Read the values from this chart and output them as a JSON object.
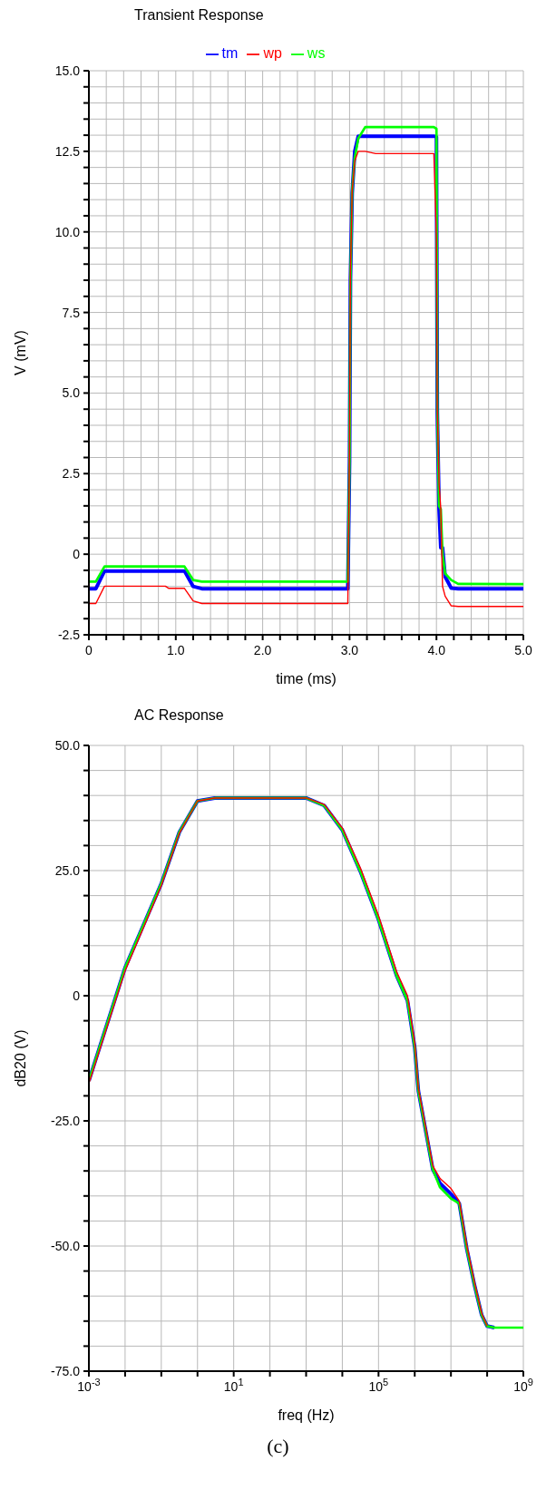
{
  "chart_data": [
    {
      "type": "line",
      "title": "Transient Response",
      "xlabel": "time (ms)",
      "ylabel": "V (mV)",
      "legend": "top",
      "grid": true,
      "x": [
        0,
        0.08,
        0.18,
        0.88,
        0.92,
        1.1,
        1.2,
        1.3,
        2.98,
        3.0,
        3.01,
        3.03,
        3.06,
        3.1,
        3.18,
        3.3,
        3.97,
        4.0,
        4.01,
        4.03,
        4.05,
        4.07,
        4.1,
        4.17,
        4.25,
        5.0
      ],
      "series": [
        {
          "name": "tm",
          "color": "#0000ff",
          "values": [
            -1.07,
            -1.07,
            -0.52,
            -0.52,
            -0.52,
            -0.52,
            -1.0,
            -1.07,
            -1.07,
            2.9,
            8.5,
            11.2,
            12.5,
            12.97,
            12.97,
            12.97,
            12.97,
            12.95,
            4.4,
            1.4,
            0.2,
            0.2,
            -0.7,
            -1.05,
            -1.07,
            -1.07
          ]
        },
        {
          "name": "ws",
          "color": "#00ff00",
          "values": [
            -0.85,
            -0.85,
            -0.38,
            -0.38,
            -0.38,
            -0.38,
            -0.8,
            -0.85,
            -0.85,
            3.0,
            8.5,
            11.3,
            12.3,
            12.9,
            13.25,
            13.25,
            13.25,
            13.2,
            4.5,
            1.5,
            1.4,
            0.0,
            -0.6,
            -0.8,
            -0.92,
            -0.93
          ]
        },
        {
          "name": "wp",
          "color": "#ff0000",
          "values": [
            -1.53,
            -1.53,
            -0.99,
            -0.99,
            -1.06,
            -1.06,
            -1.45,
            -1.53,
            -1.53,
            3.3,
            8.7,
            11.3,
            12.2,
            12.5,
            12.5,
            12.43,
            12.43,
            9.8,
            4.5,
            2.2,
            1.4,
            -1.0,
            -1.3,
            -1.6,
            -1.62,
            -1.62
          ]
        }
      ],
      "xlim": [
        0,
        5
      ],
      "xticks": [
        0,
        {
          "value": 0.2,
          "label": null
        },
        {
          "value": 0.4,
          "label": null
        },
        {
          "value": 0.6,
          "label": null
        },
        {
          "value": 0.8,
          "label": null
        },
        {
          "value": 1,
          "label": "1.0"
        },
        {
          "value": 1.2,
          "label": null
        },
        {
          "value": 1.4,
          "label": null
        },
        {
          "value": 1.6,
          "label": null
        },
        {
          "value": 1.8,
          "label": null
        },
        {
          "value": 2,
          "label": "2.0"
        },
        {
          "value": 2.2,
          "label": null
        },
        {
          "value": 2.4,
          "label": null
        },
        {
          "value": 2.6,
          "label": null
        },
        {
          "value": 2.8,
          "label": null
        },
        {
          "value": 3,
          "label": "3.0"
        },
        {
          "value": 3.2,
          "label": null
        },
        {
          "value": 3.4,
          "label": null
        },
        {
          "value": 3.6,
          "label": null
        },
        {
          "value": 3.8,
          "label": null
        },
        {
          "value": 4,
          "label": "4.0"
        },
        {
          "value": 4.2,
          "label": null
        },
        {
          "value": 4.4,
          "label": null
        },
        {
          "value": 4.6,
          "label": null
        },
        {
          "value": 4.8,
          "label": null
        },
        {
          "value": 5,
          "label": "5.0"
        }
      ],
      "ylim": [
        -2.5,
        15
      ],
      "yticks": [
        -2.5,
        {
          "value": -2,
          "label": null
        },
        {
          "value": -1.5,
          "label": null
        },
        {
          "value": -1,
          "label": null
        },
        {
          "value": -0.5,
          "label": null
        },
        0,
        {
          "value": 0.5,
          "label": null
        },
        {
          "value": 1,
          "label": null
        },
        {
          "value": 1.5,
          "label": null
        },
        {
          "value": 2,
          "label": null
        },
        2.5,
        {
          "value": 3,
          "label": null
        },
        {
          "value": 3.5,
          "label": null
        },
        {
          "value": 4,
          "label": null
        },
        {
          "value": 4.5,
          "label": null
        },
        {
          "value": 5,
          "label": "5.0"
        },
        {
          "value": 5.5,
          "label": null
        },
        {
          "value": 6,
          "label": null
        },
        {
          "value": 6.5,
          "label": null
        },
        {
          "value": 7,
          "label": null
        },
        7.5,
        {
          "value": 8,
          "label": null
        },
        {
          "value": 8.5,
          "label": null
        },
        {
          "value": 9,
          "label": null
        },
        {
          "value": 9.5,
          "label": null
        },
        {
          "value": 10,
          "label": "10.0"
        },
        {
          "value": 10.5,
          "label": null
        },
        {
          "value": 11,
          "label": null
        },
        {
          "value": 11.5,
          "label": null
        },
        {
          "value": 12,
          "label": null
        },
        12.5,
        {
          "value": 13,
          "label": null
        },
        {
          "value": 13.5,
          "label": null
        },
        {
          "value": 14,
          "label": null
        },
        {
          "value": 14.5,
          "label": null
        },
        {
          "value": 15,
          "label": "15.0"
        }
      ]
    },
    {
      "type": "line",
      "title": "AC Response",
      "xlabel": "freq (Hz)",
      "ylabel": "dB20 (V)",
      "grid": true,
      "log": "x",
      "annotations": [
        "(c)"
      ],
      "x": [
        0.001,
        0.01,
        0.1,
        0.316,
        1,
        3,
        1000,
        3162,
        10000,
        31623,
        100000,
        316228,
        630957,
        1000000,
        1260000,
        3160000,
        5010000,
        10000000,
        17000000,
        27500000,
        44700000,
        70800000,
        100000000,
        158000000,
        1000000000
      ],
      "series": [
        {
          "color": "#0000ff",
          "values": [
            -17,
            5.6,
            22.4,
            32.7,
            38.9,
            39.5,
            39.5,
            38,
            33.1,
            24.8,
            15.2,
            4,
            -1,
            -10.3,
            -19,
            -34.7,
            -37.5,
            -39.6,
            -41.5,
            -50.6,
            -57.8,
            -63.8,
            -66,
            -66.3,
            null
          ]
        },
        {
          "color": "#00ff00",
          "values": [
            -17,
            5.6,
            22.4,
            32.7,
            38.9,
            39.5,
            39.5,
            38,
            33.1,
            24.8,
            15.2,
            4,
            -1,
            -10.3,
            -19,
            -34.7,
            -38.3,
            -40.5,
            -41.5,
            -50.6,
            -57.8,
            -63.8,
            -66,
            -66.3,
            -66.3
          ]
        },
        {
          "color": "#ff0000",
          "values": [
            -17.5,
            5,
            22,
            32.5,
            38.9,
            39.5,
            39.5,
            38.2,
            33.5,
            25.5,
            16,
            4.8,
            0,
            -9.5,
            -18.5,
            -34,
            -36.5,
            -38.5,
            -41,
            -50,
            -57.3,
            -63.5,
            -66,
            null,
            null
          ]
        }
      ],
      "xlim": [
        0.001,
        1000000000
      ],
      "xticks": [
        {
          "value": 0.001,
          "label": "10$^{-3}$"
        },
        {
          "value": 0.01,
          "label": null
        },
        {
          "value": 0.1,
          "label": null
        },
        {
          "value": 1,
          "label": null
        },
        {
          "value": 10,
          "label": "10$^{1}$"
        },
        {
          "value": 100,
          "label": null
        },
        {
          "value": 1000,
          "label": null
        },
        {
          "value": 10000,
          "label": null
        },
        {
          "value": 100000,
          "label": "10$^{5}$"
        },
        {
          "value": 1000000,
          "label": null
        },
        {
          "value": 10000000,
          "label": null
        },
        {
          "value": 100000000,
          "label": null
        },
        {
          "value": 1000000000,
          "label": "10$^{9}$"
        }
      ],
      "ylim": [
        -75,
        50
      ],
      "yticks": [
        {
          "value": -75,
          "label": "-75.0"
        },
        {
          "value": -70,
          "label": null
        },
        {
          "value": -65,
          "label": null
        },
        {
          "value": -60,
          "label": null
        },
        {
          "value": -55,
          "label": null
        },
        {
          "value": -50,
          "label": "-50.0"
        },
        {
          "value": -45,
          "label": null
        },
        {
          "value": -40,
          "label": null
        },
        {
          "value": -35,
          "label": null
        },
        {
          "value": -30,
          "label": null
        },
        {
          "value": -25,
          "label": "-25.0"
        },
        {
          "value": -20,
          "label": null
        },
        {
          "value": -15,
          "label": null
        },
        {
          "value": -10,
          "label": null
        },
        {
          "value": -5,
          "label": null
        },
        0,
        {
          "value": 5,
          "label": null
        },
        {
          "value": 10,
          "label": null
        },
        {
          "value": 15,
          "label": null
        },
        {
          "value": 20,
          "label": null
        },
        {
          "value": 25,
          "label": "25.0"
        },
        {
          "value": 30,
          "label": null
        },
        {
          "value": 35,
          "label": null
        },
        {
          "value": 40,
          "label": null
        },
        {
          "value": 45,
          "label": null
        },
        {
          "value": 50,
          "label": "50.0"
        }
      ]
    }
  ]
}
